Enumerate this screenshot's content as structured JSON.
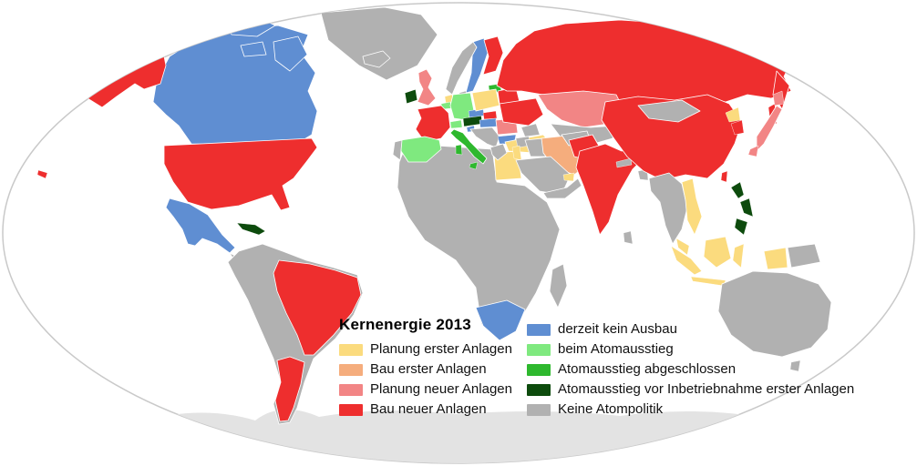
{
  "legend": {
    "title": "Kernenergie 2013",
    "columns": {
      "left": [
        "planung_erster",
        "bau_erster",
        "planung_neuer",
        "bau_neuer"
      ],
      "right": [
        "kein_ausbau",
        "beim_ausstieg",
        "ausstieg_abgeschlossen",
        "ausstieg_vor_inbetriebnahme",
        "keine_atompolitik"
      ]
    }
  },
  "categories": {
    "planung_erster": {
      "label": "Planung erster Anlagen",
      "color": "#fbdb7e"
    },
    "bau_erster": {
      "label": "Bau erster Anlagen",
      "color": "#f5ad7d"
    },
    "planung_neuer": {
      "label": "Planung neuer Anlagen",
      "color": "#f28585"
    },
    "bau_neuer": {
      "label": "Bau neuer Anlagen",
      "color": "#ee2e2e"
    },
    "kein_ausbau": {
      "label": "derzeit kein Ausbau",
      "color": "#5f8ed2"
    },
    "beim_ausstieg": {
      "label": "beim Atomausstieg",
      "color": "#7fe97f"
    },
    "ausstieg_abgeschlossen": {
      "label": "Atomausstieg abgeschlossen",
      "color": "#2eb82e"
    },
    "ausstieg_vor_inbetriebnahme": {
      "label": "Atomausstieg vor Inbetriebnahme erster Anlagen",
      "color": "#0d4b0d"
    },
    "keine_atompolitik": {
      "label": "Keine Atompolitik",
      "color": "#b1b1b1"
    }
  },
  "map": {
    "ocean_color": "#ffffff",
    "outline_color": "#c9c9c9",
    "country_border_color": "#ffffff",
    "antarctica_color": "#e3e3e3",
    "regions": {
      "canada": "kein_ausbau",
      "canada-islands": "kein_ausbau",
      "greenland": "keine_atompolitik",
      "alaska": "bau_neuer",
      "usa": "bau_neuer",
      "hawaii": "bau_neuer",
      "mexico": "kein_ausbau",
      "central-america": "keine_atompolitik",
      "cuba": "ausstieg_vor_inbetriebnahme",
      "south-america": "keine_atompolitik",
      "brazil": "bau_neuer",
      "argentina": "bau_neuer",
      "iceland": "keine_atompolitik",
      "ireland": "ausstieg_vor_inbetriebnahme",
      "uk": "planung_neuer",
      "norway": "keine_atompolitik",
      "sweden": "kein_ausbau",
      "finland": "bau_neuer",
      "denmark": "keine_atompolitik",
      "lithuania": "ausstieg_abgeschlossen",
      "netherlands": "planung_erster",
      "belgium": "beim_ausstieg",
      "germany": "beim_ausstieg",
      "france": "bau_neuer",
      "spain": "beim_ausstieg",
      "portugal": "keine_atompolitik",
      "switzerland": "beim_ausstieg",
      "austria": "ausstieg_vor_inbetriebnahme",
      "italy": "ausstieg_abgeschlossen",
      "poland": "planung_erster",
      "czech": "kein_ausbau",
      "slovakia": "bau_neuer",
      "hungary": "kein_ausbau",
      "slovenia": "kein_ausbau",
      "balkans": "keine_atompolitik",
      "romania": "planung_neuer",
      "bulgaria": "kein_ausbau",
      "greece": "keine_atompolitik",
      "belarus": "bau_neuer",
      "ukraine": "bau_neuer",
      "turkey": "planung_erster",
      "russia": "bau_neuer",
      "kazakhstan": "planung_neuer",
      "central-asia": "keine_atompolitik",
      "caucasus": "keine_atompolitik",
      "iran": "bau_erster",
      "iraq": "keine_atompolitik",
      "syria": "keine_atompolitik",
      "jordan-israel": "planung_erster",
      "saudi-arabia": "keine_atompolitik",
      "uae": "planung_erster",
      "yemen-oman": "keine_atompolitik",
      "egypt": "planung_erster",
      "africa": "keine_atompolitik",
      "south-africa": "kein_ausbau",
      "madagascar": "keine_atompolitik",
      "india": "bau_neuer",
      "pakistan": "bau_neuer",
      "afghanistan": "keine_atompolitik",
      "nepal": "keine_atompolitik",
      "bangladesh": "keine_atompolitik",
      "china": "bau_neuer",
      "mongolia": "keine_atompolitik",
      "indochina": "keine_atompolitik",
      "vietnam": "planung_erster",
      "malaysia": "planung_erster",
      "indonesia": "planung_erster",
      "papua-new-guinea": "keine_atompolitik",
      "philippines": "ausstieg_vor_inbetriebnahme",
      "taiwan": "bau_neuer",
      "japan": "planung_neuer",
      "north-korea": "planung_erster",
      "south-korea": "bau_neuer",
      "sri-lanka": "keine_atompolitik",
      "australia": "keine_atompolitik",
      "new-zealand": "keine_atompolitik"
    }
  }
}
